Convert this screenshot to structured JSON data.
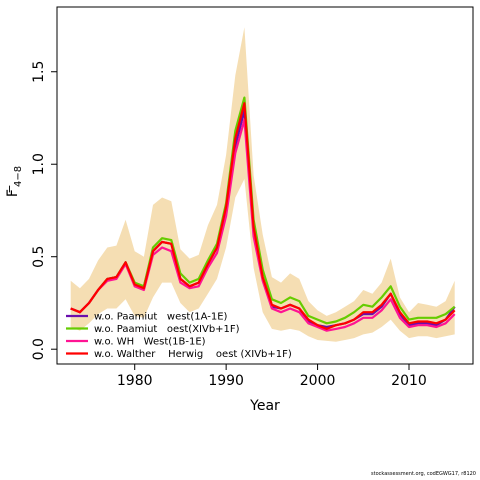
{
  "chart_data": {
    "type": "line",
    "xlabel": "Year",
    "ylabel_main": "F",
    "ylabel_sub": "4−8",
    "xlim": [
      1971.5,
      2017
    ],
    "ylim": [
      -0.08,
      1.85
    ],
    "xticks": [
      1980,
      1990,
      2000,
      2010
    ],
    "yticks": [
      0.0,
      0.5,
      1.0,
      1.5
    ],
    "ytick_labels": [
      "0.0",
      "0.5",
      "1.0",
      "1.5"
    ],
    "grid": false,
    "legend_position": "bottom-left",
    "band_color": "#f5deb3",
    "band": {
      "x": [
        1973,
        1974,
        1975,
        1976,
        1977,
        1978,
        1979,
        1980,
        1981,
        1982,
        1983,
        1984,
        1985,
        1986,
        1987,
        1988,
        1989,
        1990,
        1991,
        1992,
        1993,
        1994,
        1995,
        1996,
        1997,
        1998,
        1999,
        2000,
        2001,
        2002,
        2003,
        2004,
        2005,
        2006,
        2007,
        2008,
        2009,
        2010,
        2011,
        2012,
        2013,
        2014,
        2015
      ],
      "lower": [
        0.12,
        0.1,
        0.14,
        0.19,
        0.22,
        0.22,
        0.27,
        0.18,
        0.17,
        0.28,
        0.36,
        0.36,
        0.25,
        0.2,
        0.22,
        0.3,
        0.38,
        0.55,
        0.82,
        0.92,
        0.44,
        0.2,
        0.11,
        0.1,
        0.11,
        0.1,
        0.07,
        0.05,
        0.045,
        0.04,
        0.05,
        0.06,
        0.08,
        0.09,
        0.12,
        0.16,
        0.1,
        0.06,
        0.07,
        0.07,
        0.06,
        0.07,
        0.08
      ],
      "upper": [
        0.37,
        0.33,
        0.38,
        0.48,
        0.55,
        0.56,
        0.7,
        0.53,
        0.5,
        0.78,
        0.82,
        0.8,
        0.54,
        0.49,
        0.51,
        0.67,
        0.78,
        1.05,
        1.48,
        1.74,
        0.94,
        0.62,
        0.39,
        0.36,
        0.41,
        0.38,
        0.26,
        0.21,
        0.18,
        0.2,
        0.23,
        0.26,
        0.32,
        0.3,
        0.36,
        0.49,
        0.28,
        0.2,
        0.25,
        0.24,
        0.23,
        0.26,
        0.37
      ]
    },
    "series": [
      {
        "name": "w.o. Paamiut   west(1A-1E)",
        "color": "#6a0dad",
        "x": [
          1973,
          1974,
          1975,
          1976,
          1977,
          1978,
          1979,
          1980,
          1981,
          1982,
          1983,
          1984,
          1985,
          1986,
          1987,
          1988,
          1989,
          1990,
          1991,
          1992,
          1993,
          1994,
          1995,
          1996,
          1997,
          1998,
          1999,
          2000,
          2001,
          2002,
          2003,
          2004,
          2005,
          2006,
          2007,
          2008,
          2009,
          2010,
          2011,
          2012,
          2013,
          2014,
          2015
        ],
        "values": [
          0.22,
          0.2,
          0.25,
          0.32,
          0.38,
          0.39,
          0.47,
          0.35,
          0.34,
          0.53,
          0.58,
          0.57,
          0.38,
          0.34,
          0.36,
          0.46,
          0.55,
          0.76,
          1.1,
          1.29,
          0.64,
          0.38,
          0.23,
          0.22,
          0.24,
          0.22,
          0.15,
          0.13,
          0.12,
          0.13,
          0.14,
          0.16,
          0.19,
          0.19,
          0.23,
          0.3,
          0.19,
          0.13,
          0.14,
          0.14,
          0.13,
          0.16,
          0.23
        ]
      },
      {
        "name": "w.o. Paamiut   oest(XIVb+1F)",
        "color": "#66cc00",
        "x": [
          1973,
          1974,
          1975,
          1976,
          1977,
          1978,
          1979,
          1980,
          1981,
          1982,
          1983,
          1984,
          1985,
          1986,
          1987,
          1988,
          1989,
          1990,
          1991,
          1992,
          1993,
          1994,
          1995,
          1996,
          1997,
          1998,
          1999,
          2000,
          2001,
          2002,
          2003,
          2004,
          2005,
          2006,
          2007,
          2008,
          2009,
          2010,
          2011,
          2012,
          2013,
          2014,
          2015
        ],
        "values": [
          0.22,
          0.2,
          0.25,
          0.32,
          0.38,
          0.39,
          0.47,
          0.36,
          0.34,
          0.55,
          0.6,
          0.59,
          0.41,
          0.36,
          0.38,
          0.48,
          0.57,
          0.79,
          1.18,
          1.36,
          0.7,
          0.43,
          0.27,
          0.25,
          0.28,
          0.26,
          0.18,
          0.16,
          0.14,
          0.15,
          0.17,
          0.2,
          0.24,
          0.23,
          0.28,
          0.34,
          0.23,
          0.16,
          0.17,
          0.17,
          0.17,
          0.19,
          0.23
        ]
      },
      {
        "name": "w.o. WH   West(1B-1E)",
        "color": "#ff1493",
        "x": [
          1973,
          1974,
          1975,
          1976,
          1977,
          1978,
          1979,
          1980,
          1981,
          1982,
          1983,
          1984,
          1985,
          1986,
          1987,
          1988,
          1989,
          1990,
          1991,
          1992,
          1993,
          1994,
          1995,
          1996,
          1997,
          1998,
          1999,
          2000,
          2001,
          2002,
          2003,
          2004,
          2005,
          2006,
          2007,
          2008,
          2009,
          2010,
          2011,
          2012,
          2013,
          2014,
          2015
        ],
        "values": [
          0.22,
          0.2,
          0.25,
          0.32,
          0.37,
          0.38,
          0.46,
          0.34,
          0.32,
          0.51,
          0.55,
          0.53,
          0.36,
          0.33,
          0.34,
          0.44,
          0.52,
          0.72,
          1.06,
          1.24,
          0.61,
          0.37,
          0.22,
          0.2,
          0.22,
          0.2,
          0.14,
          0.12,
          0.1,
          0.11,
          0.12,
          0.14,
          0.17,
          0.17,
          0.21,
          0.27,
          0.17,
          0.12,
          0.13,
          0.13,
          0.12,
          0.14,
          0.19
        ]
      },
      {
        "name": "w.o. Walther    Herwig    oest (XIVb+1F)",
        "color": "#ff0000",
        "x": [
          1973,
          1974,
          1975,
          1976,
          1977,
          1978,
          1979,
          1980,
          1981,
          1982,
          1983,
          1984,
          1985,
          1986,
          1987,
          1988,
          1989,
          1990,
          1991,
          1992,
          1993,
          1994,
          1995,
          1996,
          1997,
          1998,
          1999,
          2000,
          2001,
          2002,
          2003,
          2004,
          2005,
          2006,
          2007,
          2008,
          2009,
          2010,
          2011,
          2012,
          2013,
          2014,
          2015
        ],
        "values": [
          0.22,
          0.2,
          0.25,
          0.32,
          0.38,
          0.39,
          0.47,
          0.35,
          0.33,
          0.53,
          0.58,
          0.57,
          0.38,
          0.34,
          0.36,
          0.46,
          0.55,
          0.77,
          1.14,
          1.33,
          0.66,
          0.39,
          0.24,
          0.22,
          0.24,
          0.22,
          0.16,
          0.13,
          0.11,
          0.13,
          0.14,
          0.16,
          0.2,
          0.2,
          0.24,
          0.3,
          0.2,
          0.14,
          0.15,
          0.15,
          0.14,
          0.16,
          0.21
        ]
      }
    ]
  },
  "footer": "stockassessment.org, codEGWG17, r8120"
}
